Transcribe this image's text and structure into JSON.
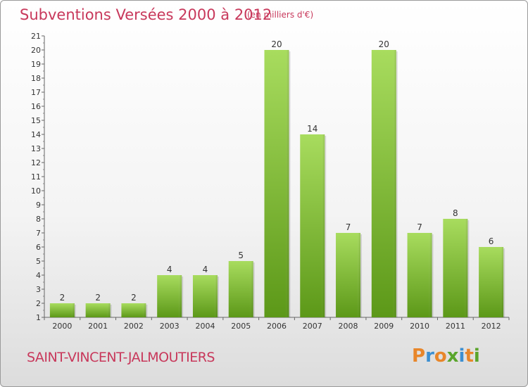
{
  "title": "Subventions Versées 2000 à 2012",
  "subtitle": "(en milliers d'€)",
  "commune": "SAINT-VINCENT-JALMOUTIERS",
  "logo": {
    "letters": [
      "P",
      "r",
      "o",
      "x",
      "i",
      "t",
      "i"
    ],
    "colors": [
      "#e8862a",
      "#3c8fd1",
      "#e8862a",
      "#5aa52c",
      "#3c8fd1",
      "#e8862a",
      "#5aa52c"
    ]
  },
  "colors": {
    "title": "#c8385b",
    "bar_light": "#a4d95a",
    "bar_dark": "#5e9a1a"
  },
  "chart_data": {
    "type": "bar",
    "title": "Subventions Versées 2000 à 2012",
    "categories": [
      "2000",
      "2001",
      "2002",
      "2003",
      "2004",
      "2005",
      "2006",
      "2007",
      "2008",
      "2009",
      "2010",
      "2011",
      "2012"
    ],
    "values": [
      2,
      2,
      2,
      4,
      4,
      5,
      20,
      14,
      7,
      20,
      7,
      8,
      6
    ],
    "ylim": [
      1,
      21
    ],
    "yticks": [
      1,
      2,
      3,
      4,
      5,
      6,
      7,
      8,
      9,
      10,
      11,
      12,
      13,
      14,
      15,
      16,
      17,
      18,
      19,
      20,
      21
    ],
    "grid": false,
    "legend": "none"
  }
}
